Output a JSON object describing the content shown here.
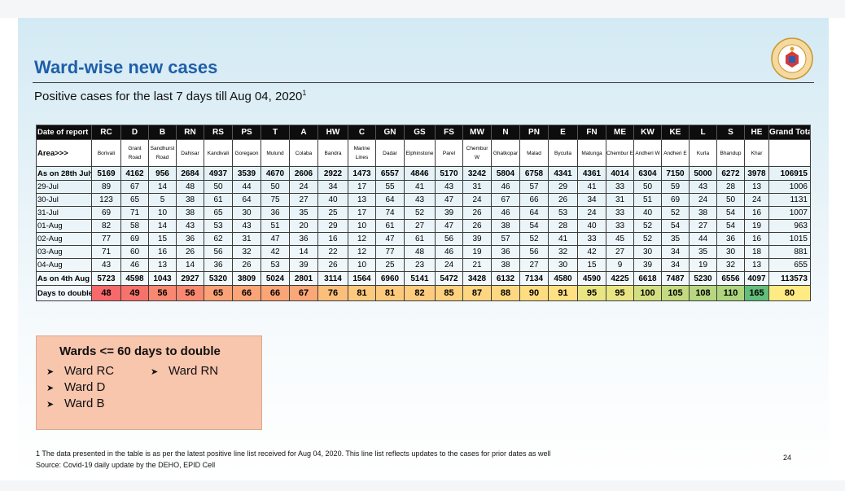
{
  "slide": {
    "title": "Ward-wise new cases",
    "subtitle": "Positive cases for the last 7 days till Aug 04, 2020",
    "subtitle_sup": "1",
    "page_number": "24"
  },
  "table": {
    "header_label": "Date of report",
    "area_label": "Area>>>",
    "wards": [
      "RC",
      "D",
      "B",
      "RN",
      "RS",
      "PS",
      "T",
      "A",
      "HW",
      "C",
      "GN",
      "GS",
      "FS",
      "MW",
      "N",
      "PN",
      "E",
      "FN",
      "ME",
      "KW",
      "KE",
      "L",
      "S",
      "HE"
    ],
    "grand_total_label": "Grand Total",
    "areas": [
      "Borivali",
      "Grant Road",
      "Sandhurst Road",
      "Dahisar",
      "Kandivali",
      "Goregaon",
      "Mulund",
      "Colaba",
      "Bandra",
      "Marine Lines",
      "Dadar",
      "Elphinstone",
      "Parel",
      "Chembur W",
      "Ghatkopar",
      "Malad",
      "Byculla",
      "Matunga",
      "Chembur E",
      "Andheri W",
      "Andheri E",
      "Kurla",
      "Bhandup",
      "Khar"
    ],
    "rows": [
      {
        "label": "As on 28th July",
        "bold": true,
        "values": [
          "5169",
          "4162",
          "956",
          "2684",
          "4937",
          "3539",
          "4670",
          "2606",
          "2922",
          "1473",
          "6557",
          "4846",
          "5170",
          "3242",
          "5804",
          "6758",
          "4341",
          "4361",
          "4014",
          "6304",
          "7150",
          "5000",
          "6272",
          "3978"
        ],
        "total": "106915"
      },
      {
        "label": "29-Jul",
        "bold": false,
        "values": [
          "89",
          "67",
          "14",
          "48",
          "50",
          "44",
          "50",
          "24",
          "34",
          "17",
          "55",
          "41",
          "43",
          "31",
          "46",
          "57",
          "29",
          "41",
          "33",
          "50",
          "59",
          "43",
          "28",
          "13"
        ],
        "total": "1006"
      },
      {
        "label": "30-Jul",
        "bold": false,
        "values": [
          "123",
          "65",
          "5",
          "38",
          "61",
          "64",
          "75",
          "27",
          "40",
          "13",
          "64",
          "43",
          "47",
          "24",
          "67",
          "66",
          "26",
          "34",
          "31",
          "51",
          "69",
          "24",
          "50",
          "24"
        ],
        "total": "1131"
      },
      {
        "label": "31-Jul",
        "bold": false,
        "values": [
          "69",
          "71",
          "10",
          "38",
          "65",
          "30",
          "36",
          "35",
          "25",
          "17",
          "74",
          "52",
          "39",
          "26",
          "46",
          "64",
          "53",
          "24",
          "33",
          "40",
          "52",
          "38",
          "54",
          "16"
        ],
        "total": "1007"
      },
      {
        "label": "01-Aug",
        "bold": false,
        "values": [
          "82",
          "58",
          "14",
          "43",
          "53",
          "43",
          "51",
          "20",
          "29",
          "10",
          "61",
          "27",
          "47",
          "26",
          "38",
          "54",
          "28",
          "40",
          "33",
          "52",
          "54",
          "27",
          "54",
          "19"
        ],
        "total": "963"
      },
      {
        "label": "02-Aug",
        "bold": false,
        "values": [
          "77",
          "69",
          "15",
          "36",
          "62",
          "31",
          "47",
          "36",
          "16",
          "12",
          "47",
          "61",
          "56",
          "39",
          "57",
          "52",
          "41",
          "33",
          "45",
          "52",
          "35",
          "44",
          "36",
          "16"
        ],
        "total": "1015"
      },
      {
        "label": "03-Aug",
        "bold": false,
        "values": [
          "71",
          "60",
          "16",
          "26",
          "56",
          "32",
          "42",
          "14",
          "22",
          "12",
          "77",
          "48",
          "46",
          "19",
          "36",
          "56",
          "32",
          "42",
          "27",
          "30",
          "34",
          "35",
          "30",
          "18"
        ],
        "total": "881"
      },
      {
        "label": "04-Aug",
        "bold": false,
        "values": [
          "43",
          "46",
          "13",
          "14",
          "36",
          "26",
          "53",
          "39",
          "26",
          "10",
          "25",
          "23",
          "24",
          "21",
          "38",
          "27",
          "30",
          "15",
          "9",
          "39",
          "34",
          "19",
          "32",
          "13"
        ],
        "total": "655"
      },
      {
        "label": "As on 4th Aug",
        "bold": true,
        "values": [
          "5723",
          "4598",
          "1043",
          "2927",
          "5320",
          "3809",
          "5024",
          "2801",
          "3114",
          "1564",
          "6960",
          "5141",
          "5472",
          "3428",
          "6132",
          "7134",
          "4580",
          "4590",
          "4225",
          "6618",
          "7487",
          "5230",
          "6556",
          "4097"
        ],
        "total": "113573"
      }
    ],
    "doubling": {
      "label": "Days to double",
      "values": [
        "48",
        "49",
        "56",
        "56",
        "65",
        "66",
        "66",
        "67",
        "76",
        "81",
        "81",
        "82",
        "85",
        "87",
        "88",
        "90",
        "91",
        "95",
        "95",
        "100",
        "105",
        "108",
        "110",
        "165"
      ],
      "colors": [
        "#f8696b",
        "#f8726c",
        "#f98870",
        "#f98870",
        "#fba276",
        "#fba476",
        "#fba476",
        "#fba777",
        "#fcbf7b",
        "#fdc97d",
        "#fdc97d",
        "#fecc7e",
        "#fed17f",
        "#fed580",
        "#fed880",
        "#fedd81",
        "#ffe082",
        "#eae583",
        "#eae583",
        "#d4df81",
        "#c3da80",
        "#b6d77f",
        "#aed57e",
        "#63be7b"
      ],
      "total": "80",
      "total_color": "#ffeb84"
    }
  },
  "callout": {
    "heading": "Wards <= 60 days to double",
    "items_left": [
      "Ward RC",
      "Ward D",
      "Ward B"
    ],
    "items_right": [
      "Ward RN"
    ]
  },
  "footnote": {
    "line1": "1 The data presented in the table is as per the latest positive line list received for Aug 04, 2020. This line list reflects updates to the cases for prior dates as well",
    "line2": "Source: Covid-19 daily update by the DEHO, EPID Cell"
  }
}
